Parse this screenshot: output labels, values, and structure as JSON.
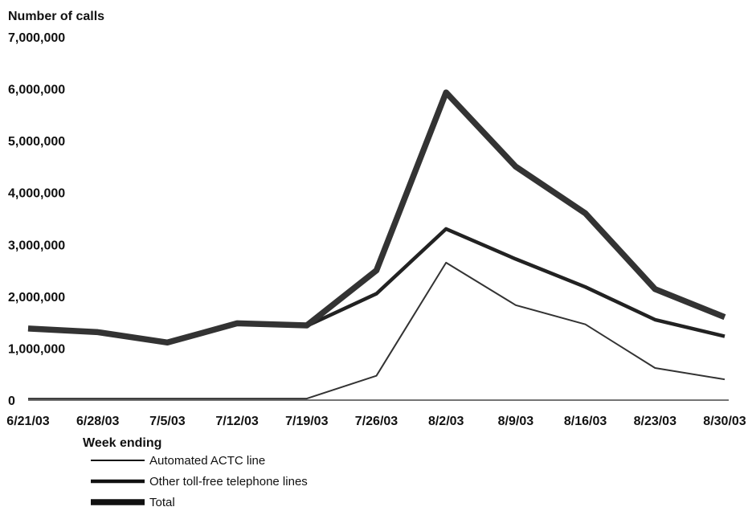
{
  "chart_data": {
    "type": "line",
    "ylabel": "Number of calls",
    "xlabel": "Week ending",
    "categories": [
      "6/21/03",
      "6/28/03",
      "7/5/03",
      "7/12/03",
      "7/19/03",
      "7/26/03",
      "8/2/03",
      "8/9/03",
      "8/16/03",
      "8/23/03",
      "8/30/03"
    ],
    "y_ticks": [
      "0",
      "1,000,000",
      "2,000,000",
      "3,000,000",
      "4,000,000",
      "5,000,000",
      "6,000,000",
      "7,000,000"
    ],
    "ylim": [
      0,
      7000000
    ],
    "grid": false,
    "legend_position": "bottom-left",
    "series": [
      {
        "name": "Automated ACTC line",
        "line_style": "thin",
        "color": "#333333",
        "values": [
          30000,
          30000,
          30000,
          30000,
          30000,
          470000,
          2650000,
          1830000,
          1460000,
          620000,
          400000
        ]
      },
      {
        "name": "Other toll-free telephone lines",
        "line_style": "medium",
        "color": "#222222",
        "values": [
          1370000,
          1300000,
          1100000,
          1470000,
          1430000,
          2050000,
          3300000,
          2720000,
          2180000,
          1550000,
          1230000
        ]
      },
      {
        "name": "Total",
        "line_style": "thick",
        "color": "#333333",
        "values": [
          1380000,
          1310000,
          1110000,
          1480000,
          1440000,
          2500000,
          5930000,
          4500000,
          3600000,
          2140000,
          1600000
        ]
      }
    ]
  }
}
